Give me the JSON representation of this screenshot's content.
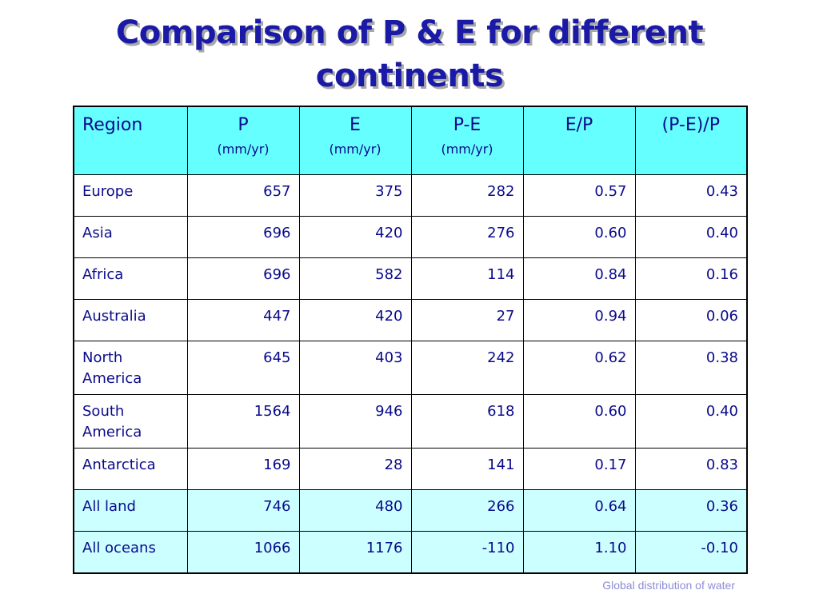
{
  "slide": {
    "title_line1": "Comparison of P & E for different",
    "title_line2": "continents",
    "footer": "Global distribution of water"
  },
  "table": {
    "headers": [
      {
        "label": "Region",
        "unit": ""
      },
      {
        "label": "P",
        "unit": "(mm/yr)"
      },
      {
        "label": "E",
        "unit": "(mm/yr)"
      },
      {
        "label": "P-E",
        "unit": "(mm/yr)"
      },
      {
        "label": "E/P",
        "unit": ""
      },
      {
        "label": "(P-E)/P",
        "unit": ""
      }
    ],
    "rows": [
      {
        "region": "Europe",
        "p": "657",
        "e": "375",
        "pe": "282",
        "ep": "0.57",
        "pep": "0.43"
      },
      {
        "region": "Asia",
        "p": "696",
        "e": "420",
        "pe": "276",
        "ep": "0.60",
        "pep": "0.40"
      },
      {
        "region": "Africa",
        "p": "696",
        "e": "582",
        "pe": "114",
        "ep": "0.84",
        "pep": "0.16"
      },
      {
        "region": "Australia",
        "p": "447",
        "e": "420",
        "pe": "27",
        "ep": "0.94",
        "pep": "0.06"
      },
      {
        "region": "North America",
        "p": "645",
        "e": "403",
        "pe": "242",
        "ep": "0.62",
        "pep": "0.38"
      },
      {
        "region": "South America",
        "p": "1564",
        "e": "946",
        "pe": "618",
        "ep": "0.60",
        "pep": "0.40"
      },
      {
        "region": "Antarctica",
        "p": "169",
        "e": "28",
        "pe": "141",
        "ep": "0.17",
        "pep": "0.83"
      },
      {
        "region": "All land",
        "p": "746",
        "e": "480",
        "pe": "266",
        "ep": "0.64",
        "pep": "0.36"
      },
      {
        "region": "All oceans",
        "p": "1066",
        "e": "1176",
        "pe": "-110",
        "ep": "1.10",
        "pep": "-0.10"
      }
    ]
  },
  "colors": {
    "title": "#1a1aa6",
    "header_bg": "#66ffff",
    "highlight_row_bg": "#ccffff",
    "text": "#0a0a8c",
    "footer": "#8c8cd9"
  }
}
